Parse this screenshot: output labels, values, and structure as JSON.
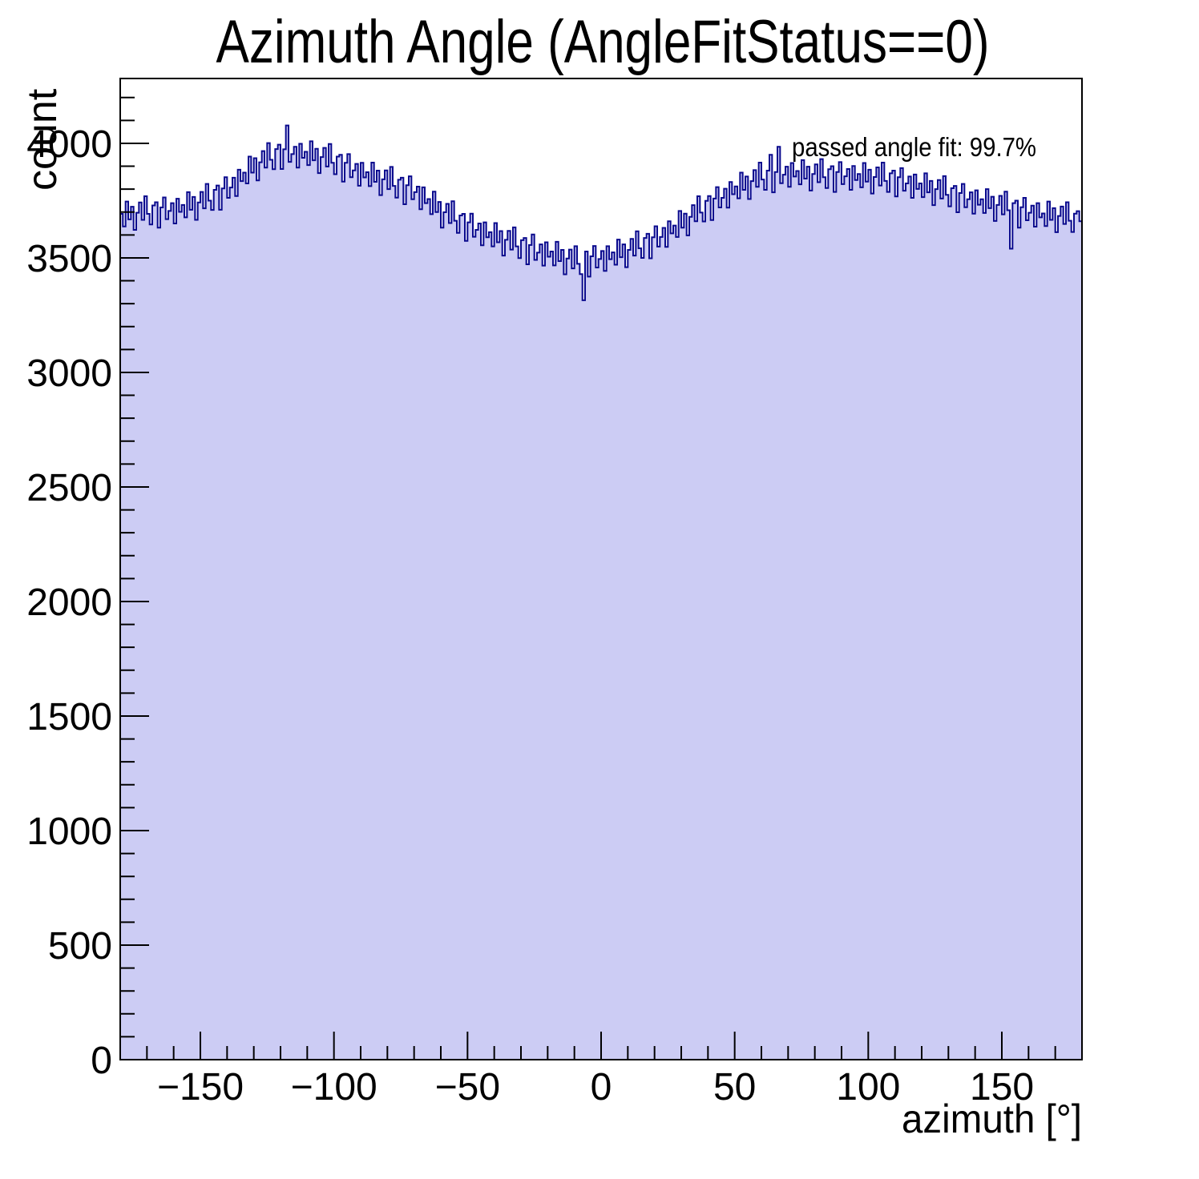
{
  "chart_data": {
    "type": "bar",
    "title": "Azimuth Angle (AngleFitStatus==0)",
    "xlabel": "azimuth [°]",
    "ylabel": "count",
    "annotation": "passed angle fit: 99.7%",
    "xlim": [
      -180,
      180
    ],
    "ylim": [
      0,
      4283
    ],
    "grid": false,
    "legend_position": "none",
    "line_color": "#0a0a8d",
    "fill_color": "#ccccf4",
    "frame_color": "#000000",
    "x_major_ticks": [
      {
        "v": -150,
        "label": "−150"
      },
      {
        "v": -100,
        "label": "−100"
      },
      {
        "v": -50,
        "label": "−50"
      },
      {
        "v": 0,
        "label": "0"
      },
      {
        "v": 50,
        "label": "50"
      },
      {
        "v": 100,
        "label": "100"
      },
      {
        "v": 150,
        "label": "150"
      }
    ],
    "x_minor_step": 10,
    "y_major_ticks": [
      {
        "v": 0,
        "label": "0"
      },
      {
        "v": 500,
        "label": "500"
      },
      {
        "v": 1000,
        "label": "1000"
      },
      {
        "v": 1500,
        "label": "1500"
      },
      {
        "v": 2000,
        "label": "2000"
      },
      {
        "v": 2500,
        "label": "2500"
      },
      {
        "v": 3000,
        "label": "3000"
      },
      {
        "v": 3500,
        "label": "3500"
      },
      {
        "v": 4000,
        "label": "4000"
      }
    ],
    "y_minor_step": 100,
    "x_start": -180,
    "bin_width_deg": 1,
    "values": [
      3692,
      3637,
      3746,
      3668,
      3723,
      3622,
      3697,
      3742,
      3666,
      3769,
      3692,
      3646,
      3729,
      3743,
      3632,
      3720,
      3764,
      3669,
      3705,
      3739,
      3650,
      3758,
      3701,
      3731,
      3677,
      3787,
      3710,
      3766,
      3666,
      3742,
      3788,
      3716,
      3823,
      3750,
      3709,
      3797,
      3816,
      3710,
      3803,
      3852,
      3762,
      3807,
      3850,
      3770,
      3885,
      3835,
      3872,
      3825,
      3942,
      3872,
      3935,
      3838,
      3917,
      3966,
      3894,
      4001,
      3928,
      3887,
      3975,
      3994,
      3888,
      3974,
      4078,
      3919,
      3953,
      3985,
      3894,
      3998,
      3937,
      3963,
      3905,
      4009,
      3926,
      3976,
      3870,
      3940,
      3980,
      3899,
      3997,
      3915,
      3865,
      3942,
      3950,
      3833,
      3915,
      3953,
      3852,
      3882,
      3910,
      3815,
      3915,
      3851,
      3874,
      3813,
      3916,
      3832,
      3881,
      3774,
      3843,
      3882,
      3800,
      3897,
      3814,
      3763,
      3841,
      3850,
      3734,
      3817,
      3856,
      3756,
      3787,
      3811,
      3712,
      3808,
      3739,
      3757,
      3691,
      3789,
      3700,
      3744,
      3632,
      3699,
      3736,
      3652,
      3747,
      3662,
      3609,
      3685,
      3692,
      3574,
      3655,
      3693,
      3592,
      3622,
      3650,
      3555,
      3655,
      3590,
      3612,
      3550,
      3652,
      3568,
      3617,
      3510,
      3579,
      3618,
      3536,
      3633,
      3550,
      3499,
      3577,
      3587,
      3472,
      3556,
      3602,
      3491,
      3523,
      3559,
      3466,
      3568,
      3505,
      3528,
      3467,
      3570,
      3486,
      3535,
      3428,
      3497,
      3536,
      3454,
      3551,
      3474,
      3429,
      3315,
      3528,
      3418,
      3507,
      3552,
      3458,
      3495,
      3530,
      3443,
      3551,
      3494,
      3524,
      3470,
      3580,
      3503,
      3559,
      3459,
      3535,
      3583,
      3510,
      3616,
      3542,
      3500,
      3587,
      3605,
      3498,
      3590,
      3638,
      3549,
      3591,
      3631,
      3548,
      3660,
      3607,
      3641,
      3591,
      3705,
      3632,
      3693,
      3598,
      3679,
      3730,
      3660,
      3769,
      3698,
      3659,
      3749,
      3770,
      3665,
      3759,
      3809,
      3720,
      3762,
      3802,
      3719,
      3831,
      3778,
      3812,
      3760,
      3872,
      3797,
      3855,
      3757,
      3835,
      3883,
      3810,
      3916,
      3842,
      3797,
      3881,
      3950,
      3786,
      3875,
      3985,
      3826,
      3863,
      3898,
      3810,
      3914,
      3855,
      3879,
      3821,
      3927,
      3846,
      3898,
      3794,
      3866,
      3908,
      3830,
      3931,
      3852,
      3805,
      3887,
      3900,
      3788,
      3875,
      3918,
      3822,
      3856,
      3888,
      3797,
      3901,
      3840,
      3866,
      3808,
      3914,
      3833,
      3885,
      3781,
      3853,
      3895,
      3816,
      3916,
      3836,
      3788,
      3869,
      3881,
      3768,
      3852,
      3892,
      3793,
      3825,
      3855,
      3762,
      3864,
      3801,
      3825,
      3765,
      3869,
      3786,
      3836,
      3730,
      3800,
      3840,
      3759,
      3857,
      3775,
      3725,
      3804,
      3814,
      3699,
      3783,
      3823,
      3721,
      3756,
      3786,
      3693,
      3795,
      3732,
      3756,
      3696,
      3800,
      3717,
      3767,
      3661,
      3731,
      3771,
      3690,
      3789,
      3708,
      3540,
      3739,
      3750,
      3632,
      3721,
      3762,
      3664,
      3697,
      3728,
      3636,
      3739,
      3677,
      3694,
      3639,
      3746,
      3666,
      3717,
      3612,
      3683,
      3724,
      3648,
      3743,
      3662,
      3613,
      3693,
      3704,
      3660
    ]
  }
}
